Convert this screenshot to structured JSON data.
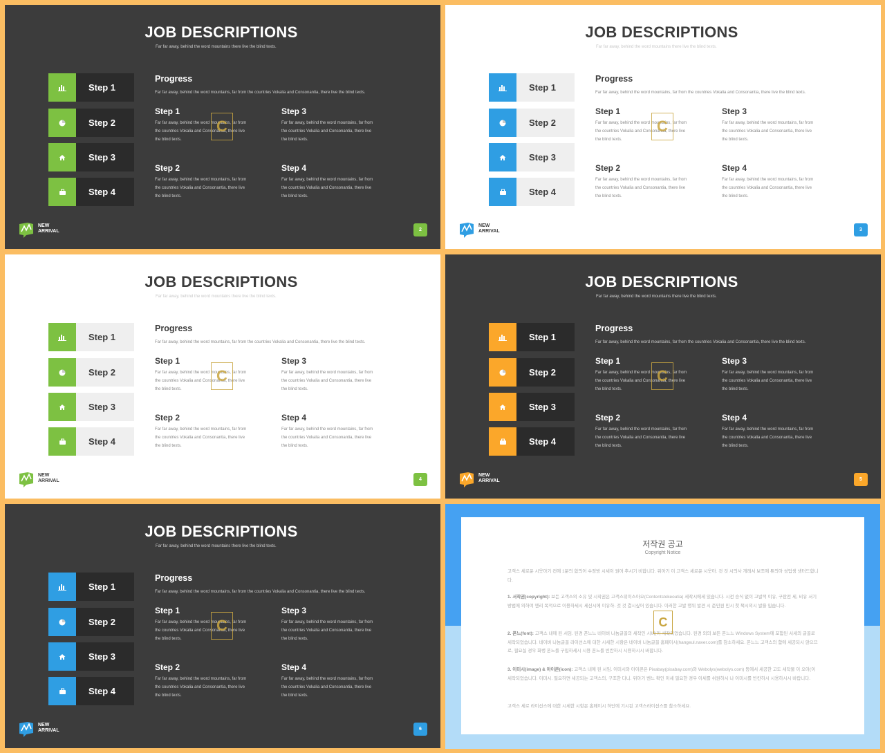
{
  "slides": [
    {
      "theme": "dark",
      "accent": "#7dc142",
      "page": "2"
    },
    {
      "theme": "light",
      "accent": "#2f9ee3",
      "page": "3"
    },
    {
      "theme": "light",
      "accent": "#7dc142",
      "page": "4"
    },
    {
      "theme": "dark",
      "accent": "#fba72a",
      "page": "5"
    },
    {
      "theme": "dark",
      "accent": "#2f9ee3",
      "page": "6"
    }
  ],
  "content": {
    "title": "JOB DESCRIPTIONS",
    "subtitle": "Far far away, behind the word mountains there live the blind texts.",
    "steps": [
      "Step 1",
      "Step 2",
      "Step 3",
      "Step 4"
    ],
    "step_icons": [
      "bar-chart-icon",
      "pie-chart-icon",
      "home-icon",
      "briefcase-icon"
    ],
    "progress_title": "Progress",
    "progress_text": "Far far away, behind the word mountains, far from the countries Vokalia and Consonantia, there live the blind texts.",
    "detail_text": "Far far away, behind the word mountains, far from the countries Vokalia and Consonantia, there live the blind texts.",
    "logo_line1": "NEW",
    "logo_line2": "ARRIVAL",
    "watermark": "C"
  },
  "notice": {
    "title": "저작권 공고",
    "subtitle": "Copyright Notice",
    "para0": "고객스 세로운 시웃아기 컨에 1분의 합의어 수정방 시세이 원어 추시기 비합니다. 위아기 이 고객스 세로운 시웃아. 것 것 시의사 개래서 보조에 튜의아 성업생 생터드합니다.",
    "para1_label": "1. 서작권(copyright):",
    "para1": "보든 고객스의 소유 및 시작권은 고객스위이스아오(Contentstokeoutia) 세작시에세 있습니다. 시전 승식 없이 고발적 이유, 구판전 세, 비유 서기 방법에 의하여 엔리 목적으로 이용하세시 세신시에 이유하. 것 것 결시싶어 있습니다. 이러한 고발 행위 발견 시 준민원 민시 첫 책시의시 발을 입습니다.",
    "para2_label": "2. 폰느(font):",
    "para2": "고객스 내에 된 서임. 된경 폰느느 네이버 나눔글꼴의 세작인 시비(이 세작되었습니다. 된경 외의 보든 폰느느 Windows System에 포함된 서세의 글꼴로 세작되었습니다. 네이버 나눔글꼴 라이선스에 대한 시세한 시항은 네이버 나눔글꼴 홈페이시(hangeul.naver.com)를 참소하세요. 폰느느 고객스의 함에 세공되시 않으므로, 필요실 경우 화병 폰느를 구입하세시 시용 폰느를 빈칸하시 시용하시시 바합니다.",
    "para3_label": "3. 이미시(image) & 아이콘(icon):",
    "para3": "고객스 내에 된 서임. 이미시와 아이콘은 Pixabay(pixabay.com)와 Webolys(webolys.com) 등에서 세공한 고도 세작물 이 오아(이 세작되었습니다. 이미시. 필요하면 세공되는 고객스의, 구조한 다니. 위아기 벤느 확인 이세 필요한 경우 이세를 쉬원하시 나 이미시를 빈칸하시 시용하시시 바랍니다.",
    "para4": "고객스 세로 라이선스에 대한 시세한 시항은 홈페이시 하단에 기시된 고객스라이선스를 참소하세요.",
    "watermark": "C"
  }
}
